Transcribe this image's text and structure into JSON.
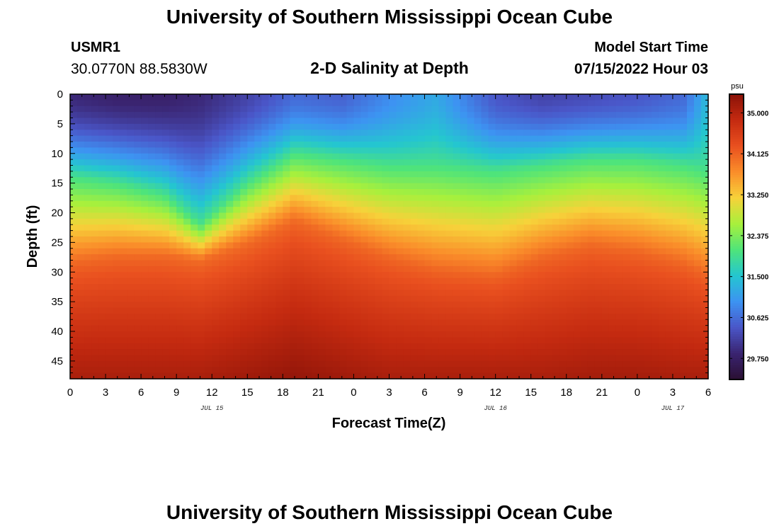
{
  "header": {
    "title": "University of Southern Mississippi Ocean Cube",
    "station_name": "USMR1",
    "station_coords": "30.0770N  88.5830W",
    "subtitle": "2-D Salinity at Depth",
    "model_start_label": "Model Start Time",
    "model_start_value": "07/15/2022 Hour 03"
  },
  "footer": {
    "title": "University of Southern Mississippi Ocean Cube"
  },
  "chart_data": {
    "type": "heatmap",
    "title": "2-D Salinity at Depth",
    "xlabel": "Forecast Time(Z)",
    "ylabel": "Depth (ft)",
    "x_hours_range": [
      0,
      54
    ],
    "x_tick_labels": [
      "0",
      "3",
      "6",
      "9",
      "12",
      "15",
      "18",
      "21",
      "0",
      "3",
      "6",
      "9",
      "12",
      "15",
      "18",
      "21",
      "0",
      "3",
      "6"
    ],
    "day_labels": [
      {
        "label": "JUL 15",
        "hour": 12
      },
      {
        "label": "JUL 16",
        "hour": 36
      },
      {
        "label": "JUL 17",
        "hour": 51
      }
    ],
    "ylim": [
      0,
      48
    ],
    "y_tick_labels": [
      "0",
      "5",
      "10",
      "15",
      "20",
      "25",
      "30",
      "35",
      "40",
      "45"
    ],
    "colorbar": {
      "unit": "psu",
      "range": [
        29.3,
        35.4
      ],
      "tick_labels": [
        "35.000",
        "34.125",
        "33.250",
        "32.375",
        "31.500",
        "30.625",
        "29.750"
      ],
      "palette": [
        "#2a0f33",
        "#3a2470",
        "#4a56c8",
        "#3d93f2",
        "#24c6d0",
        "#4fe47a",
        "#a8f03c",
        "#f7d23a",
        "#fa8d2a",
        "#e9501f",
        "#c42a10",
        "#8a1208"
      ]
    },
    "profile_description": "Salinity increases with depth: fresh surface layer (~29.8-31 psu) over saline bottom water (~35 psu); upwelling of saline water near hour 19 and hour 44, fresher water deepening near hour 11 and hour 36.",
    "profile_anchors_hours": [
      0,
      4,
      8,
      11,
      15,
      19,
      23,
      27,
      31,
      36,
      40,
      44,
      48,
      52,
      54
    ],
    "surface_salinity": [
      29.9,
      29.8,
      29.8,
      29.9,
      30.2,
      30.6,
      30.5,
      30.9,
      31.2,
      30.4,
      30.2,
      30.3,
      30.4,
      30.6,
      31.4
    ],
    "isohaline_32_depth_ft": [
      14,
      15,
      17,
      22,
      15,
      10,
      11,
      12,
      12,
      13,
      12,
      11,
      11,
      12,
      13
    ],
    "isohaline_34_depth_ft": [
      28,
      27,
      27,
      28,
      25,
      21,
      24,
      27,
      29,
      30,
      27,
      25,
      26,
      28,
      30
    ],
    "bottom_salinity": [
      35.1,
      35.1,
      35.1,
      35.1,
      35.2,
      35.3,
      35.2,
      35.1,
      35.1,
      35.1,
      35.1,
      35.15,
      35.15,
      35.1,
      35.1
    ]
  }
}
